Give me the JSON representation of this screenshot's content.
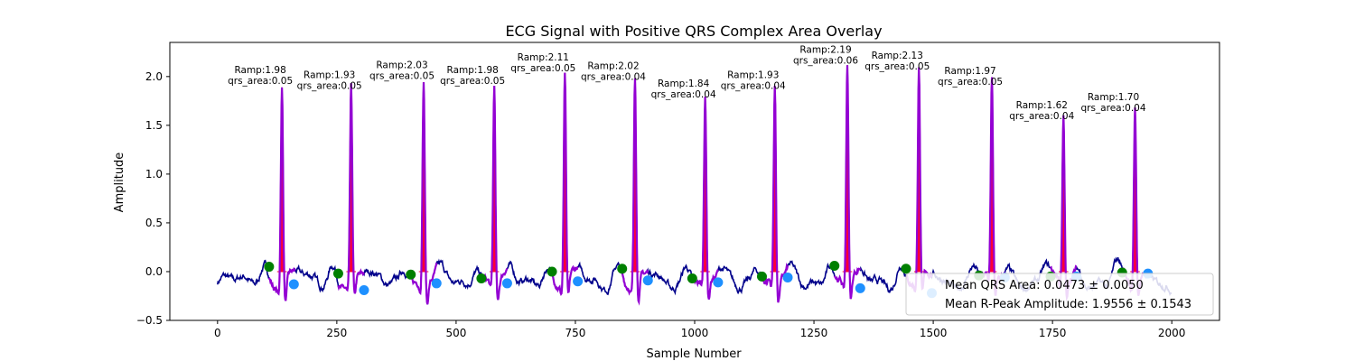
{
  "chart_data": {
    "type": "line",
    "title": "ECG Signal with Positive QRS Complex Area Overlay",
    "xlabel": "Sample Number",
    "ylabel": "Amplitude",
    "xlim": [
      -100,
      2100
    ],
    "ylim": [
      -0.5,
      2.35
    ],
    "xticks": [
      0,
      250,
      500,
      750,
      1000,
      1250,
      1500,
      1750,
      2000
    ],
    "xtick_labels": [
      "0",
      "250",
      "500",
      "750",
      "1000",
      "1250",
      "1500",
      "1750",
      "2000"
    ],
    "yticks": [
      -0.5,
      0.0,
      0.5,
      1.0,
      1.5,
      2.0
    ],
    "ytick_labels": [
      "−0.5",
      "0.0",
      "0.5",
      "1.0",
      "1.5",
      "2.0"
    ],
    "grid": false,
    "legend_position": "bottom-right",
    "colors": {
      "signal": "#00008b",
      "qrs_segment": "#9400d3",
      "area_fill": "#ff0033",
      "q_marker": "#008000",
      "s_marker": "#1e90ff"
    },
    "signal_samples": 2000,
    "beats": [
      {
        "r_x": 135,
        "r_amp": 1.98,
        "label_ramp": "Ramp:1.98",
        "label_area": "qrs_area:0.05",
        "q_x": 108,
        "q_y": 0.05,
        "s_x": 160,
        "s_y": -0.13
      },
      {
        "r_x": 280,
        "r_amp": 1.93,
        "label_ramp": "Ramp:1.93",
        "label_area": "qrs_area:0.05",
        "q_x": 253,
        "q_y": -0.02,
        "s_x": 307,
        "s_y": -0.19
      },
      {
        "r_x": 432,
        "r_amp": 2.03,
        "label_ramp": "Ramp:2.03",
        "label_area": "qrs_area:0.05",
        "q_x": 405,
        "q_y": -0.03,
        "s_x": 459,
        "s_y": -0.12
      },
      {
        "r_x": 580,
        "r_amp": 1.98,
        "label_ramp": "Ramp:1.98",
        "label_area": "qrs_area:0.05",
        "q_x": 553,
        "q_y": -0.07,
        "s_x": 607,
        "s_y": -0.12
      },
      {
        "r_x": 728,
        "r_amp": 2.11,
        "label_ramp": "Ramp:2.11",
        "label_area": "qrs_area:0.05",
        "q_x": 701,
        "q_y": 0.0,
        "s_x": 755,
        "s_y": -0.1
      },
      {
        "r_x": 875,
        "r_amp": 2.02,
        "label_ramp": "Ramp:2.02",
        "label_area": "qrs_area:0.04",
        "q_x": 848,
        "q_y": 0.03,
        "s_x": 902,
        "s_y": -0.09
      },
      {
        "r_x": 1022,
        "r_amp": 1.84,
        "label_ramp": "Ramp:1.84",
        "label_area": "qrs_area:0.04",
        "q_x": 995,
        "q_y": -0.07,
        "s_x": 1049,
        "s_y": -0.11
      },
      {
        "r_x": 1168,
        "r_amp": 1.93,
        "label_ramp": "Ramp:1.93",
        "label_area": "qrs_area:0.04",
        "q_x": 1141,
        "q_y": -0.05,
        "s_x": 1195,
        "s_y": -0.06
      },
      {
        "r_x": 1320,
        "r_amp": 2.19,
        "label_ramp": "Ramp:2.19",
        "label_area": "qrs_area:0.06",
        "q_x": 1293,
        "q_y": 0.06,
        "s_x": 1347,
        "s_y": -0.17
      },
      {
        "r_x": 1470,
        "r_amp": 2.13,
        "label_ramp": "Ramp:2.13",
        "label_area": "qrs_area:0.05",
        "q_x": 1443,
        "q_y": 0.03,
        "s_x": 1497,
        "s_y": -0.22
      },
      {
        "r_x": 1623,
        "r_amp": 1.97,
        "label_ramp": "Ramp:1.97",
        "label_area": "qrs_area:0.05",
        "q_x": 1596,
        "q_y": -0.04,
        "s_x": 1650,
        "s_y": -0.06
      },
      {
        "r_x": 1773,
        "r_amp": 1.62,
        "label_ramp": "Ramp:1.62",
        "label_area": "qrs_area:0.04",
        "q_x": 1746,
        "q_y": -0.05,
        "s_x": 1800,
        "s_y": -0.05
      },
      {
        "r_x": 1923,
        "r_amp": 1.7,
        "label_ramp": "Ramp:1.70",
        "label_area": "qrs_area:0.04",
        "q_x": 1896,
        "q_y": -0.01,
        "s_x": 1950,
        "s_y": -0.02
      }
    ],
    "legend": [
      "Mean QRS Area: 0.0473 ± 0.0050",
      "Mean R-Peak Amplitude: 1.9556 ± 0.1543"
    ]
  }
}
